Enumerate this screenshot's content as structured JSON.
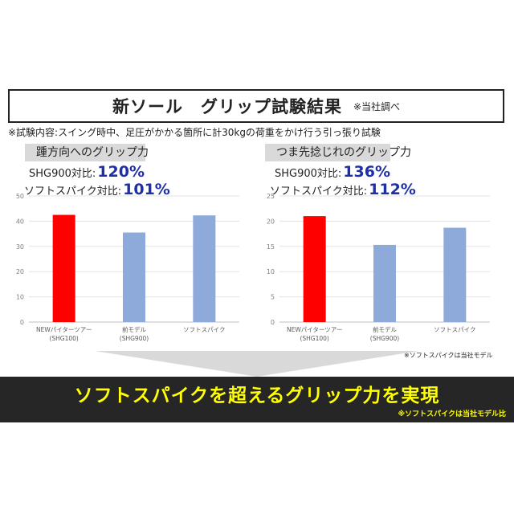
{
  "header": {
    "title": "新ソール　グリップ試験結果",
    "title_note": "※当社調べ",
    "test_note": "※試験内容:スイング時中、足圧がかかる箇所に計30kgの荷重をかけ行う引っ張り試験"
  },
  "panels": [
    {
      "label": "踵方向へのグリップ力",
      "ratio1_label": "SHG900対比:",
      "ratio1_value": "120%",
      "ratio2_label": "ソフトスパイク対比:",
      "ratio2_value": "101%"
    },
    {
      "label": "つま先捻じれのグリップ力",
      "ratio1_label": "SHG900対比:",
      "ratio1_value": "136%",
      "ratio2_label": "ソフトスパイク対比:",
      "ratio2_value": "112%"
    }
  ],
  "chart_data": [
    {
      "type": "bar",
      "categories": [
        [
          "NEWパイターツアー",
          "(SHG100)"
        ],
        [
          "前モデル",
          "(SHG900)"
        ],
        [
          "ソフトスパイク"
        ]
      ],
      "values": [
        42.5,
        35.5,
        42.3
      ],
      "ylim": [
        0,
        50
      ],
      "yticks": [
        0,
        10,
        20,
        30,
        40,
        50
      ],
      "colors": [
        "#ff0000",
        "#8eaadb",
        "#8eaadb"
      ],
      "grid": true
    },
    {
      "type": "bar",
      "categories": [
        [
          "NEWパイターツアー",
          "(SHG100)"
        ],
        [
          "前モデル",
          "(SHG900)"
        ],
        [
          "ソフトスパイク"
        ]
      ],
      "values": [
        21.0,
        15.3,
        18.7
      ],
      "ylim": [
        0,
        25
      ],
      "yticks": [
        0,
        5,
        10,
        15,
        20,
        25
      ],
      "colors": [
        "#ff0000",
        "#8eaadb",
        "#8eaadb"
      ],
      "grid": true
    }
  ],
  "footnote": "※ソフトスパイクは当社モデル",
  "banner": {
    "text": "ソフトスパイクを超えるグリップ力を実現",
    "note": "※ソフトスパイクは当社モデル比"
  }
}
